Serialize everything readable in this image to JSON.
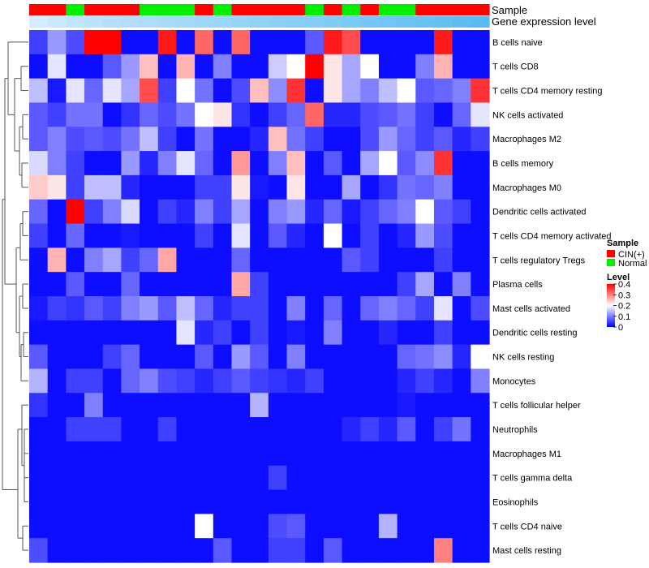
{
  "chart_data": {
    "type": "heatmap",
    "title": "",
    "annotations": [
      {
        "key": "sample",
        "label": "Sample"
      },
      {
        "key": "gene",
        "label": "Gene expression level"
      }
    ],
    "sample_groups": [
      "CIN",
      "CIN",
      "Normal",
      "CIN",
      "CIN",
      "CIN",
      "Normal",
      "Normal",
      "Normal",
      "CIN",
      "Normal",
      "CIN",
      "CIN",
      "CIN",
      "CIN",
      "Normal",
      "CIN",
      "Normal",
      "CIN",
      "Normal",
      "Normal",
      "CIN",
      "CIN",
      "CIN",
      "CIN"
    ],
    "gene_expression_level": [
      0.05,
      0.12,
      0.18,
      0.22,
      0.26,
      0.29,
      0.32,
      0.35,
      0.38,
      0.41,
      0.44,
      0.47,
      0.5,
      0.53,
      0.56,
      0.59,
      0.62,
      0.65,
      0.68,
      0.71,
      0.74,
      0.77,
      0.8,
      0.84,
      0.88
    ],
    "rows": [
      "B cells naive",
      "T cells CD8",
      "T cells CD4 memory resting",
      "NK cells activated",
      "Macrophages M2",
      "B cells memory",
      "Macrophages M0",
      "Dendritic cells activated",
      "T cells CD4 memory activated",
      "T cells regulatory  Tregs",
      "Plasma cells",
      "Mast cells activated",
      "Dendritic cells resting",
      "NK cells resting",
      "Monocytes",
      "T cells follicular helper",
      "Neutrophils",
      "Macrophages M1",
      "T cells gamma delta",
      "Eosinophils",
      "T cells CD4 naive",
      "Mast cells resting"
    ],
    "values": [
      [
        0.05,
        0.12,
        0.06,
        0.4,
        0.4,
        0.01,
        0.01,
        0.38,
        0.01,
        0.32,
        0.01,
        0.32,
        0.01,
        0.01,
        0.01,
        0.07,
        0.38,
        0.34,
        0.01,
        0.01,
        0.01,
        0.01,
        0.38,
        0.01,
        0.01
      ],
      [
        0.01,
        0.18,
        0.01,
        0.01,
        0.07,
        0.12,
        0.25,
        0.01,
        0.26,
        0.01,
        0.1,
        0.01,
        0.01,
        0.16,
        0.2,
        0.4,
        0.22,
        0.13,
        0.2,
        0.01,
        0.01,
        0.1,
        0.26,
        0.01,
        0.01
      ],
      [
        0.15,
        0.02,
        0.18,
        0.08,
        0.18,
        0.13,
        0.34,
        0.05,
        0.2,
        0.09,
        0.01,
        0.06,
        0.25,
        0.11,
        0.36,
        0.01,
        0.22,
        0.13,
        0.1,
        0.15,
        0.2,
        0.07,
        0.08,
        0.1,
        0.36
      ],
      [
        0.07,
        0.05,
        0.09,
        0.09,
        0.01,
        0.04,
        0.08,
        0.06,
        0.09,
        0.2,
        0.22,
        0.04,
        0.01,
        0.05,
        0.08,
        0.32,
        0.03,
        0.03,
        0.06,
        0.07,
        0.09,
        0.05,
        0.01,
        0.08,
        0.18
      ],
      [
        0.07,
        0.1,
        0.06,
        0.07,
        0.06,
        0.09,
        0.15,
        0.05,
        0.01,
        0.09,
        0.01,
        0.01,
        0.03,
        0.25,
        0.09,
        0.05,
        0.01,
        0.01,
        0.06,
        0.12,
        0.08,
        0.05,
        0.07,
        0.03,
        0.05
      ],
      [
        0.17,
        0.1,
        0.05,
        0.01,
        0.01,
        0.12,
        0.03,
        0.1,
        0.18,
        0.08,
        0.01,
        0.28,
        0.01,
        0.1,
        0.25,
        0.01,
        0.07,
        0.01,
        0.13,
        0.2,
        0.07,
        0.11,
        0.36,
        0.01,
        0.01
      ],
      [
        0.24,
        0.22,
        0.05,
        0.15,
        0.15,
        0.03,
        0.01,
        0.01,
        0.01,
        0.05,
        0.05,
        0.22,
        0.02,
        0.01,
        0.22,
        0.01,
        0.01,
        0.13,
        0.01,
        0.04,
        0.09,
        0.08,
        0.1,
        0.01,
        0.01
      ],
      [
        0.08,
        0.01,
        0.4,
        0.05,
        0.1,
        0.17,
        0.01,
        0.05,
        0.03,
        0.1,
        0.05,
        0.13,
        0.01,
        0.1,
        0.12,
        0.03,
        0.08,
        0.02,
        0.05,
        0.08,
        0.1,
        0.2,
        0.07,
        0.05,
        0.01
      ],
      [
        0.05,
        0.01,
        0.08,
        0.01,
        0.01,
        0.02,
        0.01,
        0.01,
        0.01,
        0.05,
        0.01,
        0.18,
        0.01,
        0.07,
        0.03,
        0.01,
        0.2,
        0.01,
        0.05,
        0.01,
        0.03,
        0.12,
        0.06,
        0.01,
        0.01
      ],
      [
        0.01,
        0.26,
        0.01,
        0.1,
        0.13,
        0.05,
        0.08,
        0.27,
        0.01,
        0.01,
        0.01,
        0.08,
        0.01,
        0.01,
        0.01,
        0.01,
        0.01,
        0.07,
        0.05,
        0.01,
        0.01,
        0.01,
        0.05,
        0.01,
        0.01
      ],
      [
        0.01,
        0.01,
        0.07,
        0.01,
        0.01,
        0.08,
        0.01,
        0.01,
        0.01,
        0.01,
        0.01,
        0.27,
        0.05,
        0.01,
        0.01,
        0.01,
        0.01,
        0.01,
        0.01,
        0.01,
        0.05,
        0.13,
        0.01,
        0.1,
        0.01
      ],
      [
        0.02,
        0.05,
        0.04,
        0.07,
        0.05,
        0.1,
        0.12,
        0.07,
        0.15,
        0.08,
        0.03,
        0.05,
        0.05,
        0.01,
        0.1,
        0.01,
        0.08,
        0.01,
        0.08,
        0.1,
        0.08,
        0.05,
        0.18,
        0.01,
        0.06
      ],
      [
        0.01,
        0.01,
        0.01,
        0.01,
        0.01,
        0.01,
        0.01,
        0.01,
        0.18,
        0.03,
        0.05,
        0.01,
        0.05,
        0.01,
        0.02,
        0.01,
        0.1,
        0.01,
        0.01,
        0.03,
        0.01,
        0.01,
        0.05,
        0.01,
        0.01
      ],
      [
        0.07,
        0.01,
        0.01,
        0.01,
        0.05,
        0.08,
        0.01,
        0.01,
        0.01,
        0.07,
        0.01,
        0.12,
        0.07,
        0.01,
        0.1,
        0.01,
        0.01,
        0.01,
        0.01,
        0.01,
        0.08,
        0.09,
        0.11,
        0.03,
        0.2
      ],
      [
        0.14,
        0.01,
        0.05,
        0.05,
        0.01,
        0.08,
        0.1,
        0.06,
        0.05,
        0.03,
        0.05,
        0.07,
        0.05,
        0.04,
        0.03,
        0.05,
        0.01,
        0.01,
        0.01,
        0.01,
        0.03,
        0.05,
        0.03,
        0.01,
        0.1
      ],
      [
        0.04,
        0.01,
        0.01,
        0.1,
        0.01,
        0.01,
        0.01,
        0.01,
        0.01,
        0.01,
        0.01,
        0.01,
        0.14,
        0.01,
        0.01,
        0.01,
        0.01,
        0.01,
        0.01,
        0.01,
        0.02,
        0.01,
        0.01,
        0.01,
        0.01
      ],
      [
        0.01,
        0.01,
        0.05,
        0.05,
        0.05,
        0.01,
        0.01,
        0.05,
        0.01,
        0.01,
        0.01,
        0.01,
        0.01,
        0.01,
        0.01,
        0.01,
        0.01,
        0.03,
        0.05,
        0.03,
        0.07,
        0.01,
        0.05,
        0.09,
        0.01
      ],
      [
        0.01,
        0.01,
        0.01,
        0.01,
        0.01,
        0.01,
        0.01,
        0.01,
        0.01,
        0.01,
        0.01,
        0.01,
        0.01,
        0.01,
        0.01,
        0.01,
        0.01,
        0.01,
        0.01,
        0.01,
        0.01,
        0.01,
        0.01,
        0.01,
        0.01
      ],
      [
        0.01,
        0.01,
        0.01,
        0.01,
        0.01,
        0.01,
        0.01,
        0.01,
        0.01,
        0.01,
        0.01,
        0.01,
        0.01,
        0.05,
        0.01,
        0.01,
        0.01,
        0.01,
        0.01,
        0.01,
        0.01,
        0.01,
        0.01,
        0.01,
        0.01
      ],
      [
        0.01,
        0.01,
        0.01,
        0.01,
        0.01,
        0.01,
        0.01,
        0.01,
        0.01,
        0.01,
        0.01,
        0.01,
        0.01,
        0.01,
        0.01,
        0.01,
        0.01,
        0.01,
        0.01,
        0.01,
        0.01,
        0.01,
        0.01,
        0.01,
        0.01
      ],
      [
        0.01,
        0.01,
        0.01,
        0.01,
        0.01,
        0.01,
        0.01,
        0.01,
        0.01,
        0.2,
        0.01,
        0.01,
        0.01,
        0.06,
        0.07,
        0.01,
        0.01,
        0.01,
        0.01,
        0.14,
        0.01,
        0.01,
        0.01,
        0.01,
        0.01
      ],
      [
        0.06,
        0.01,
        0.01,
        0.01,
        0.01,
        0.01,
        0.01,
        0.01,
        0.01,
        0.01,
        0.07,
        0.01,
        0.01,
        0.05,
        0.05,
        0.01,
        0.07,
        0.01,
        0.01,
        0.01,
        0.01,
        0.01,
        0.3,
        0.01,
        0.01
      ]
    ],
    "legend": {
      "placement": "right",
      "sample": {
        "title": "Sample",
        "items": [
          {
            "key": "CIN",
            "label": "CIN(+)",
            "color": "#ff0000"
          },
          {
            "key": "Normal",
            "label": "Normal",
            "color": "#00ee00"
          }
        ]
      },
      "level": {
        "title": "Level",
        "ticks": [
          0.4,
          0.3,
          0.2,
          0.1,
          0
        ],
        "range": [
          0,
          0.4
        ],
        "colors": [
          "#0000ff",
          "#ffffff",
          "#ff0000"
        ]
      }
    },
    "dendrogram": "rows"
  }
}
